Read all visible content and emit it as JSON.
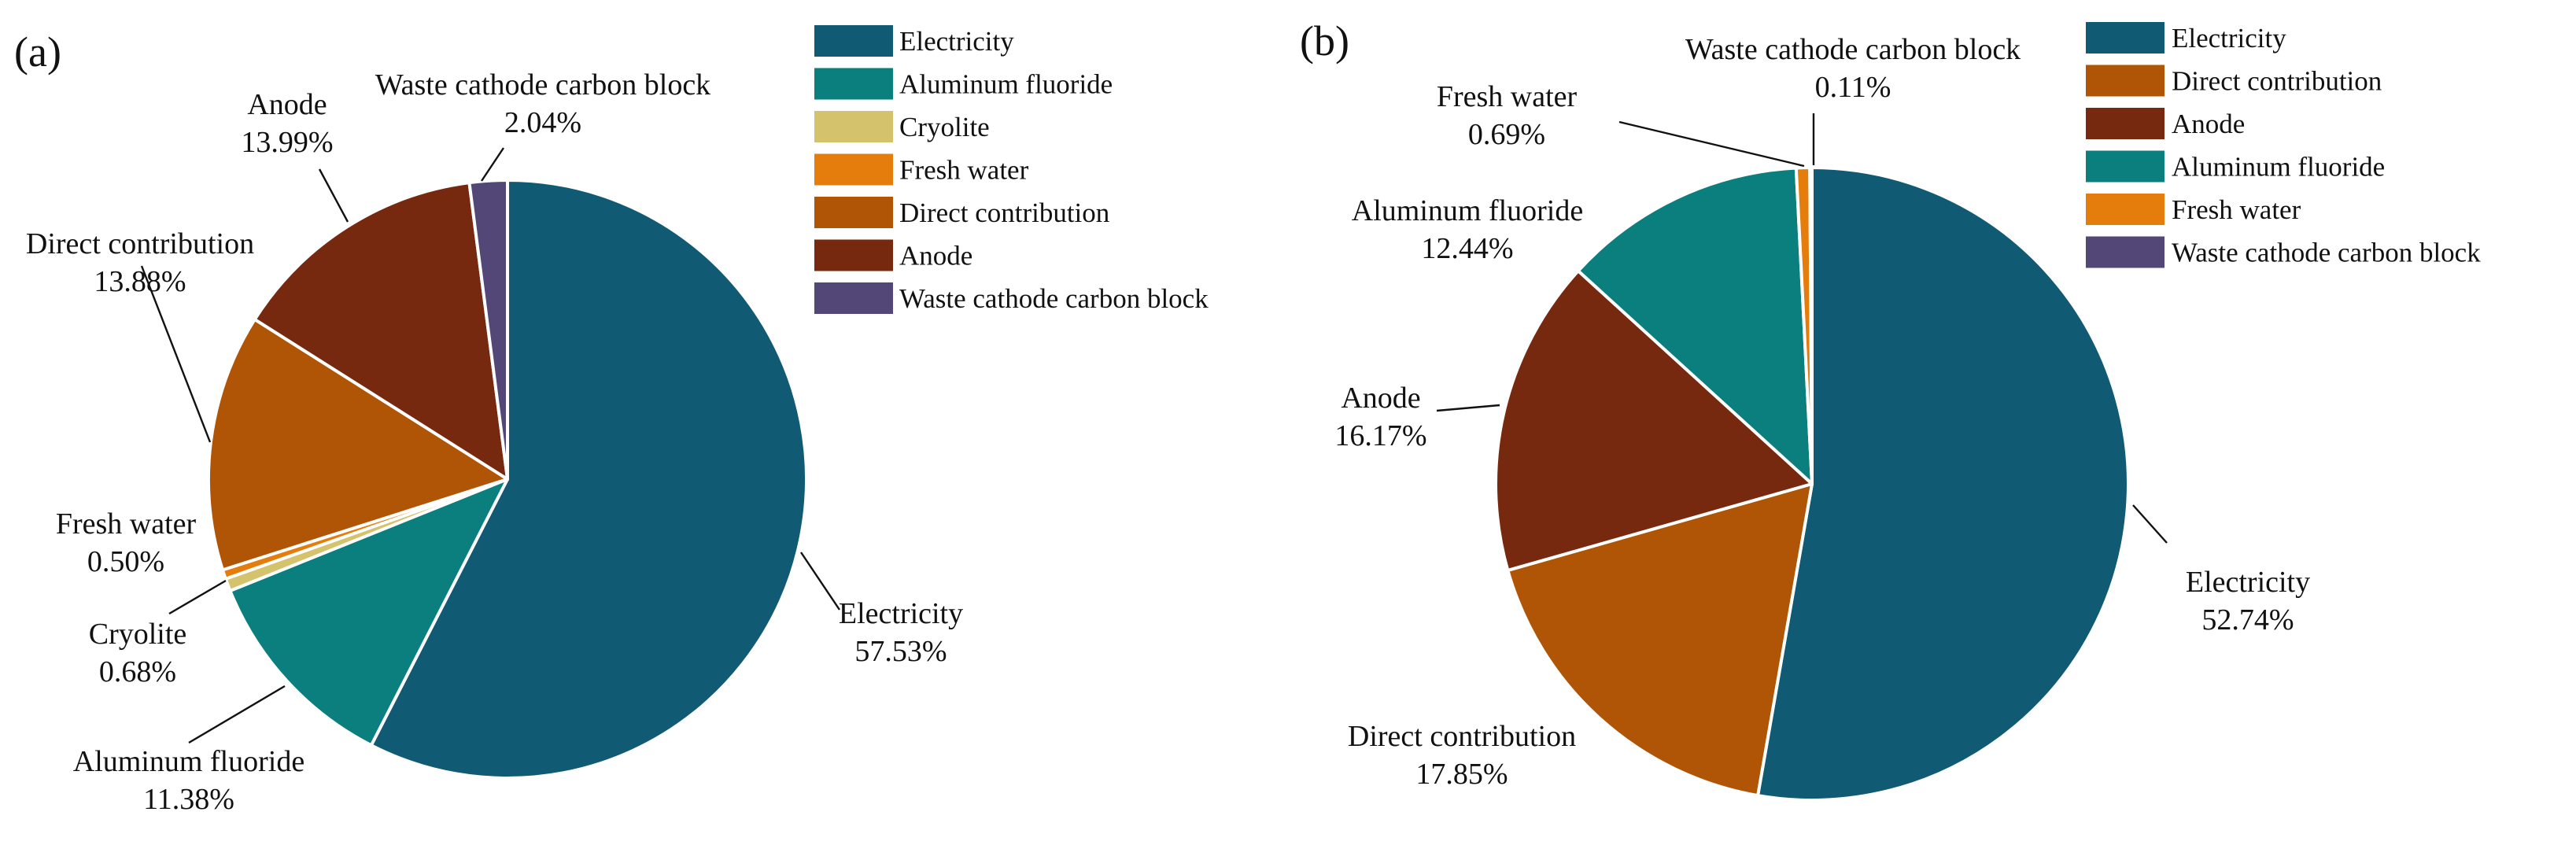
{
  "chart_data": [
    {
      "panel": "(a)",
      "type": "pie",
      "slices": [
        {
          "label": "Electricity",
          "value": 57.53,
          "value_label": "57.53%",
          "color": "#115a74"
        },
        {
          "label": "Aluminum fluoride",
          "value": 11.38,
          "value_label": "11.38%",
          "color": "#0a7f7e"
        },
        {
          "label": "Cryolite",
          "value": 0.68,
          "value_label": "0.68%",
          "color": "#d4c26c"
        },
        {
          "label": "Fresh water",
          "value": 0.5,
          "value_label": "0.50%",
          "color": "#e57d0d"
        },
        {
          "label": "Direct contribution",
          "value": 13.88,
          "value_label": "13.88%",
          "color": "#b05405"
        },
        {
          "label": "Anode",
          "value": 13.99,
          "value_label": "13.99%",
          "color": "#76290f"
        },
        {
          "label": "Waste cathode carbon block",
          "value": 2.04,
          "value_label": "2.04%",
          "color": "#534778"
        }
      ],
      "legend": [
        "Electricity",
        "Aluminum fluoride",
        "Cryolite",
        "Fresh water",
        "Direct contribution",
        "Anode",
        "Waste cathode carbon block"
      ],
      "legend_position": "top-right"
    },
    {
      "panel": "(b)",
      "type": "pie",
      "slices": [
        {
          "label": "Electricity",
          "value": 52.74,
          "value_label": "52.74%",
          "color": "#115a74"
        },
        {
          "label": "Direct contribution",
          "value": 17.85,
          "value_label": "17.85%",
          "color": "#b05405"
        },
        {
          "label": "Anode",
          "value": 16.17,
          "value_label": "16.17%",
          "color": "#76290f"
        },
        {
          "label": "Aluminum fluoride",
          "value": 12.44,
          "value_label": "12.44%",
          "color": "#0a7f7e"
        },
        {
          "label": "Fresh water",
          "value": 0.69,
          "value_label": "0.69%",
          "color": "#e57d0d"
        },
        {
          "label": "Waste cathode carbon block",
          "value": 0.11,
          "value_label": "0.11%",
          "color": "#534778"
        }
      ],
      "legend": [
        "Electricity",
        "Direct contribution",
        "Anode",
        "Aluminum fluoride",
        "Fresh water",
        "Waste cathode carbon block"
      ],
      "legend_position": "top-right"
    }
  ]
}
